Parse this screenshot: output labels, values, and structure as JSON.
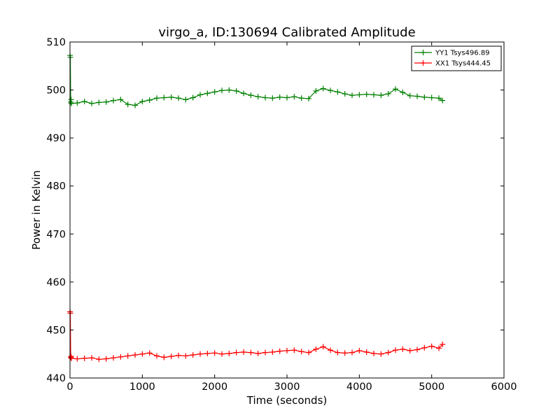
{
  "chart_data": {
    "type": "line",
    "title": "virgo_a, ID:130694 Calibrated Amplitude",
    "xlabel": "Time (seconds)",
    "ylabel": "Power in Kelvin",
    "xlim": [
      0,
      6000
    ],
    "ylim": [
      440,
      510
    ],
    "x_ticks": [
      0,
      1000,
      2000,
      3000,
      4000,
      5000,
      6000
    ],
    "y_ticks": [
      440,
      450,
      460,
      470,
      480,
      490,
      500,
      510
    ],
    "grid": false,
    "legend_position": "top-right",
    "marker": "+",
    "series": [
      {
        "name": "YY1 Tsys496.89",
        "color": "#008000",
        "x": [
          0,
          5,
          10,
          15,
          20,
          100,
          200,
          300,
          400,
          500,
          600,
          700,
          800,
          900,
          1000,
          1100,
          1200,
          1300,
          1400,
          1500,
          1600,
          1700,
          1800,
          1900,
          2000,
          2100,
          2200,
          2300,
          2400,
          2500,
          2600,
          2700,
          2800,
          2900,
          3000,
          3100,
          3200,
          3300,
          3400,
          3500,
          3600,
          3700,
          3800,
          3900,
          4000,
          4100,
          4200,
          4300,
          4400,
          4500,
          4600,
          4700,
          4800,
          4900,
          5000,
          5100,
          5150
        ],
        "y": [
          507.2,
          506.8,
          497.5,
          498.0,
          497.2,
          497.3,
          497.6,
          497.2,
          497.4,
          497.5,
          497.8,
          498.0,
          497.0,
          496.8,
          497.6,
          497.9,
          498.3,
          498.4,
          498.5,
          498.3,
          498.0,
          498.4,
          499.0,
          499.3,
          499.6,
          499.9,
          500.0,
          499.8,
          499.3,
          498.9,
          498.6,
          498.4,
          498.3,
          498.5,
          498.4,
          498.6,
          498.3,
          498.2,
          499.8,
          500.3,
          499.9,
          499.6,
          499.2,
          498.9,
          499.0,
          499.1,
          499.0,
          498.9,
          499.2,
          500.2,
          499.5,
          498.8,
          498.7,
          498.5,
          498.4,
          498.3,
          497.8
        ]
      },
      {
        "name": "XX1 Tsys444.45",
        "color": "#ff0000",
        "x": [
          0,
          5,
          10,
          15,
          20,
          100,
          200,
          300,
          400,
          500,
          600,
          700,
          800,
          900,
          1000,
          1100,
          1200,
          1300,
          1400,
          1500,
          1600,
          1700,
          1800,
          1900,
          2000,
          2100,
          2200,
          2300,
          2400,
          2500,
          2600,
          2700,
          2800,
          2900,
          3000,
          3100,
          3200,
          3300,
          3400,
          3500,
          3600,
          3700,
          3800,
          3900,
          4000,
          4100,
          4200,
          4300,
          4400,
          4500,
          4600,
          4700,
          4800,
          4900,
          5000,
          5100,
          5150
        ],
        "y": [
          453.8,
          453.5,
          444.3,
          444.5,
          444.1,
          444.0,
          444.1,
          444.2,
          443.9,
          444.0,
          444.2,
          444.4,
          444.6,
          444.8,
          445.0,
          445.2,
          444.6,
          444.3,
          444.5,
          444.7,
          444.6,
          444.8,
          445.0,
          445.1,
          445.2,
          445.0,
          445.1,
          445.3,
          445.4,
          445.3,
          445.1,
          445.3,
          445.4,
          445.6,
          445.7,
          445.8,
          445.5,
          445.3,
          446.0,
          446.5,
          445.8,
          445.3,
          445.2,
          445.3,
          445.7,
          445.4,
          445.1,
          445.0,
          445.3,
          445.8,
          446.0,
          445.7,
          445.9,
          446.3,
          446.6,
          446.2,
          447.0
        ]
      }
    ]
  }
}
